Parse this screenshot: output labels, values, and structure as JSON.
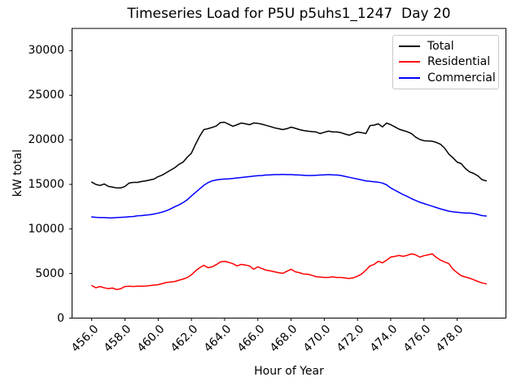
{
  "title": "Timeseries Load for P5U p5uhs1_1247  Day 20",
  "chart_data": {
    "type": "line",
    "title": "Timeseries Load for P5U p5uhs1_1247  Day 20",
    "xlabel": "Hour of Year",
    "ylabel": "kW total",
    "xlim": [
      454.8125,
      480.9375
    ],
    "ylim": [
      0,
      32500
    ],
    "grid": false,
    "legend_position": "upper right",
    "xticks": [
      456,
      458,
      460,
      462,
      464,
      466,
      468,
      470,
      472,
      474,
      476,
      478
    ],
    "xtick_labels": [
      "456.0",
      "458.0",
      "460.0",
      "462.0",
      "464.0",
      "466.0",
      "468.0",
      "470.0",
      "472.0",
      "474.0",
      "476.0",
      "478.0"
    ],
    "yticks": [
      0,
      5000,
      10000,
      15000,
      20000,
      25000,
      30000
    ],
    "ytick_labels": [
      "0",
      "5000",
      "10000",
      "15000",
      "20000",
      "25000",
      "30000"
    ],
    "x": [
      456,
      456.25,
      456.5,
      456.75,
      457,
      457.25,
      457.5,
      457.75,
      458,
      458.25,
      458.5,
      458.75,
      459,
      459.25,
      459.5,
      459.75,
      460,
      460.25,
      460.5,
      460.75,
      461,
      461.25,
      461.5,
      461.75,
      462,
      462.25,
      462.5,
      462.75,
      463,
      463.25,
      463.5,
      463.75,
      464,
      464.25,
      464.5,
      464.75,
      465,
      465.25,
      465.5,
      465.75,
      466,
      466.25,
      466.5,
      466.75,
      467,
      467.25,
      467.5,
      467.75,
      468,
      468.25,
      468.5,
      468.75,
      469,
      469.25,
      469.5,
      469.75,
      470,
      470.25,
      470.5,
      470.75,
      471,
      471.25,
      471.5,
      471.75,
      472,
      472.25,
      472.5,
      472.75,
      473,
      473.25,
      473.5,
      473.75,
      474,
      474.25,
      474.5,
      474.75,
      475,
      475.25,
      475.5,
      475.75,
      476,
      476.25,
      476.5,
      476.75,
      477,
      477.25,
      477.5,
      477.75,
      478,
      478.25,
      478.5,
      478.75,
      479,
      479.25,
      479.5,
      479.75
    ],
    "series": [
      {
        "name": "Total",
        "color": "#000000",
        "values": [
          15250,
          15000,
          14875,
          15050,
          14775,
          14700,
          14600,
          14600,
          14775,
          15150,
          15225,
          15225,
          15325,
          15400,
          15500,
          15600,
          15875,
          16050,
          16325,
          16600,
          16875,
          17250,
          17500,
          18050,
          18500,
          19500,
          20400,
          21150,
          21250,
          21400,
          21550,
          21950,
          21975,
          21750,
          21525,
          21700,
          21890,
          21800,
          21700,
          21890,
          21850,
          21750,
          21625,
          21500,
          21350,
          21250,
          21150,
          21250,
          21425,
          21300,
          21150,
          21050,
          20975,
          20925,
          20890,
          20700,
          20850,
          20975,
          20890,
          20890,
          20800,
          20650,
          20525,
          20700,
          20875,
          20800,
          20700,
          21600,
          21650,
          21800,
          21450,
          21890,
          21700,
          21450,
          21200,
          21050,
          20900,
          20700,
          20300,
          20050,
          19900,
          19875,
          19850,
          19700,
          19500,
          19050,
          18400,
          17975,
          17500,
          17325,
          16775,
          16400,
          16225,
          15950,
          15525,
          15400
        ]
      },
      {
        "name": "Residential",
        "color": "#ff0000",
        "values": [
          3650,
          3400,
          3550,
          3400,
          3300,
          3375,
          3200,
          3300,
          3550,
          3575,
          3550,
          3575,
          3575,
          3600,
          3650,
          3700,
          3750,
          3875,
          4000,
          4050,
          4100,
          4250,
          4375,
          4550,
          4850,
          5300,
          5650,
          5925,
          5650,
          5750,
          6000,
          6300,
          6375,
          6250,
          6100,
          5850,
          6025,
          5950,
          5850,
          5475,
          5750,
          5550,
          5375,
          5300,
          5200,
          5100,
          5025,
          5250,
          5475,
          5200,
          5100,
          4950,
          4925,
          4800,
          4650,
          4600,
          4560,
          4560,
          4625,
          4560,
          4560,
          4500,
          4450,
          4525,
          4700,
          4950,
          5375,
          5850,
          6025,
          6375,
          6200,
          6500,
          6850,
          6925,
          7025,
          6925,
          7050,
          7200,
          7100,
          6850,
          7000,
          7100,
          7200,
          6800,
          6500,
          6300,
          6100,
          5475,
          5100,
          4750,
          4600,
          4475,
          4300,
          4100,
          3950,
          3850
        ]
      },
      {
        "name": "Commercial",
        "color": "#0000ff",
        "values": [
          11350,
          11300,
          11275,
          11275,
          11250,
          11250,
          11275,
          11300,
          11325,
          11375,
          11400,
          11475,
          11500,
          11550,
          11600,
          11675,
          11775,
          11900,
          12050,
          12250,
          12500,
          12700,
          12950,
          13275,
          13700,
          14100,
          14500,
          14900,
          15200,
          15400,
          15500,
          15575,
          15600,
          15625,
          15675,
          15725,
          15775,
          15825,
          15875,
          15925,
          15975,
          16000,
          16050,
          16075,
          16100,
          16100,
          16125,
          16100,
          16100,
          16075,
          16050,
          16025,
          16000,
          16000,
          16025,
          16050,
          16075,
          16100,
          16075,
          16050,
          16000,
          15900,
          15800,
          15700,
          15600,
          15500,
          15400,
          15350,
          15300,
          15250,
          15150,
          14950,
          14600,
          14350,
          14100,
          13850,
          13650,
          13400,
          13200,
          13000,
          12850,
          12700,
          12550,
          12400,
          12250,
          12125,
          12000,
          11925,
          11875,
          11825,
          11775,
          11775,
          11725,
          11625,
          11500,
          11450
        ]
      }
    ]
  }
}
